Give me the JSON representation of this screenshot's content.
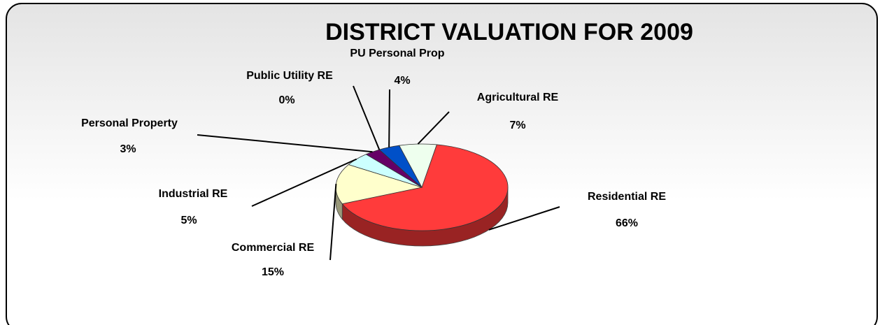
{
  "chart_data": {
    "type": "pie",
    "title": "DISTRICT VALUATION FOR 2009",
    "categories": [
      "Residential RE",
      "Commercial RE",
      "Industrial RE",
      "Personal Property",
      "Public Utility RE",
      "PU Personal Prop",
      "Agricultural RE"
    ],
    "values": [
      66,
      15,
      5,
      3,
      0,
      4,
      7
    ],
    "value_labels": [
      "66%",
      "15%",
      "5%",
      "3%",
      "0%",
      "4%",
      "7%"
    ],
    "colors": [
      "#ff3b3b",
      "#ffffcc",
      "#ccffff",
      "#660066",
      "#9999ff",
      "#0050c8",
      "#eeffee"
    ]
  }
}
